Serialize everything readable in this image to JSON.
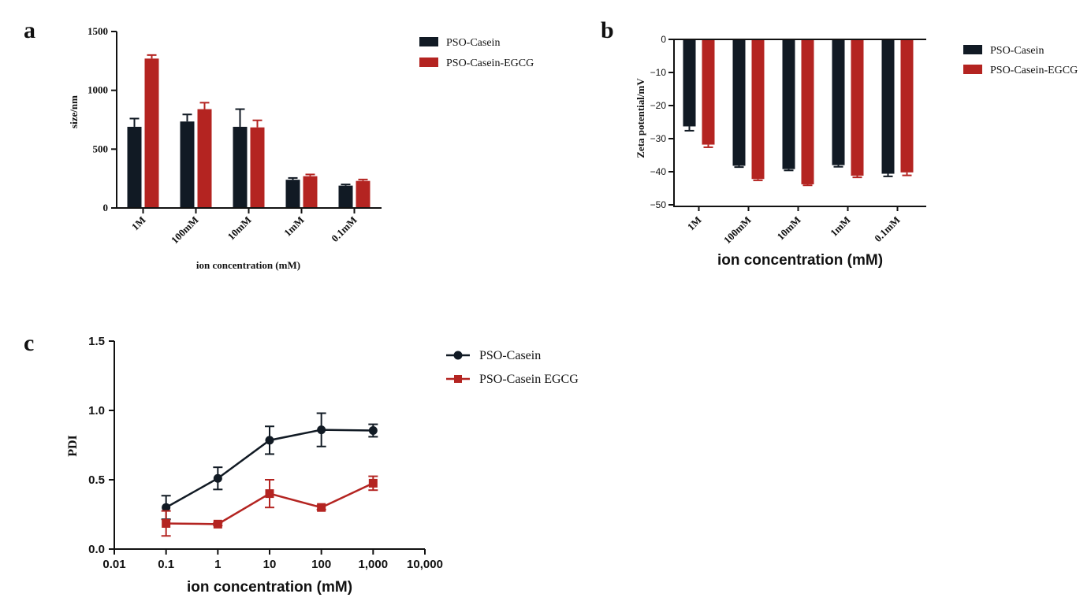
{
  "colors": {
    "series1": "#111a24",
    "series2": "#b42421",
    "axis": "#111111"
  },
  "panels": {
    "a": "a",
    "b": "b",
    "c": "c"
  },
  "chart_data": [
    {
      "id": "a",
      "type": "bar",
      "categories": [
        "1M",
        "100mM",
        "10mM",
        "1mM",
        "0.1mM"
      ],
      "series": [
        {
          "name": "PSO-Casein",
          "values": [
            690,
            735,
            690,
            240,
            190
          ],
          "errors": [
            70,
            60,
            150,
            15,
            10
          ]
        },
        {
          "name": "PSO-Casein-EGCG",
          "values": [
            1270,
            840,
            685,
            270,
            230
          ],
          "errors": [
            30,
            55,
            60,
            15,
            12
          ]
        }
      ],
      "xlabel": "ion concentration (mM)",
      "ylabel": "size/nm",
      "ylim": [
        0,
        1500
      ],
      "yticks": [
        "0",
        "500",
        "1000",
        "1500"
      ],
      "legend": "top-right"
    },
    {
      "id": "b",
      "type": "bar",
      "categories": [
        "1M",
        "100mM",
        "10mM",
        "1mM",
        "0.1mM"
      ],
      "series": [
        {
          "name": "PSO-Casein",
          "values": [
            -26.3,
            -38.2,
            -39.2,
            -38,
            -40.6
          ],
          "errors": [
            1.3,
            0.4,
            0.4,
            0.5,
            0.8
          ]
        },
        {
          "name": "PSO-Casein-EGCG",
          "values": [
            -31.8,
            -42.2,
            -43.8,
            -41.2,
            -40.2
          ],
          "errors": [
            0.8,
            0.4,
            0.3,
            0.5,
            0.9
          ]
        }
      ],
      "xlabel": "ion concentration (mM)",
      "ylabel": "Zeta potential/mV",
      "ylim": [
        -50,
        0
      ],
      "yticks": [
        "0",
        "−10",
        "−20",
        "−30",
        "−40",
        "−50"
      ],
      "legend": "top-right"
    },
    {
      "id": "c",
      "type": "line",
      "x": [
        0.1,
        1,
        10,
        100,
        1000
      ],
      "series": [
        {
          "name": "PSO-Casein",
          "marker": "circle",
          "values": [
            0.3,
            0.51,
            0.785,
            0.86,
            0.855
          ],
          "errors": [
            0.085,
            0.08,
            0.1,
            0.12,
            0.045
          ]
        },
        {
          "name": "PSO-Casein EGCG",
          "marker": "square",
          "values": [
            0.185,
            0.18,
            0.4,
            0.3,
            0.475
          ],
          "errors": [
            0.09,
            0.01,
            0.1,
            0.015,
            0.05
          ]
        }
      ],
      "xlabel": "ion concentration (mM)",
      "ylabel": "PDI",
      "xscale": "log",
      "xlim": [
        0.01,
        10000
      ],
      "xticks": [
        "0.01",
        "0.1",
        "1",
        "10",
        "100",
        "1,000",
        "10,000"
      ],
      "ylim": [
        0,
        1.5
      ],
      "yticks": [
        "0.0",
        "0.5",
        "1.0",
        "1.5"
      ],
      "legend": "top-right"
    }
  ]
}
